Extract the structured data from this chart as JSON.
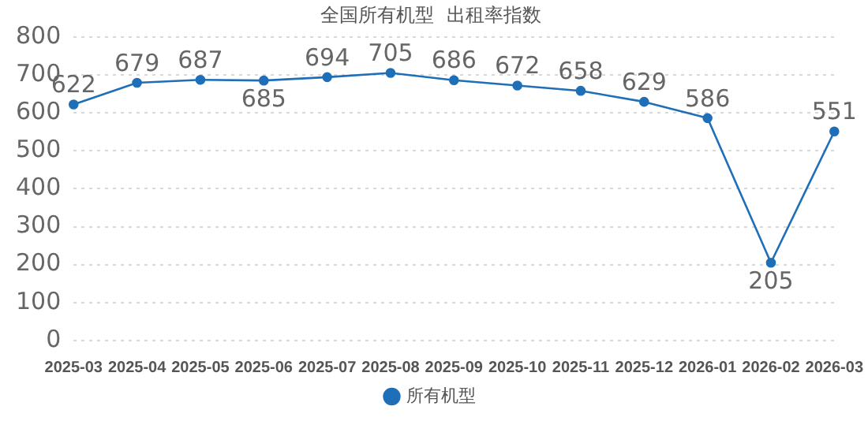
{
  "chart_data": {
    "type": "line",
    "title": "全国所有机型  出租率指数",
    "categories": [
      "2025-03",
      "2025-04",
      "2025-05",
      "2025-06",
      "2025-07",
      "2025-08",
      "2025-09",
      "2025-10",
      "2025-11",
      "2025-12",
      "2026-01",
      "2026-02",
      "2026-03"
    ],
    "series": [
      {
        "name": "所有机型",
        "color": "#1f6fb8",
        "values": [
          622,
          679,
          687,
          685,
          694,
          705,
          686,
          672,
          658,
          629,
          586,
          205,
          551
        ]
      }
    ],
    "ylim": [
      0,
      800
    ],
    "yticks": [
      0,
      100,
      200,
      300,
      400,
      500,
      600,
      700,
      800
    ],
    "grid": "y",
    "legend": "bottom",
    "marker": "circle",
    "line_style": "solid",
    "data_labels": true
  }
}
